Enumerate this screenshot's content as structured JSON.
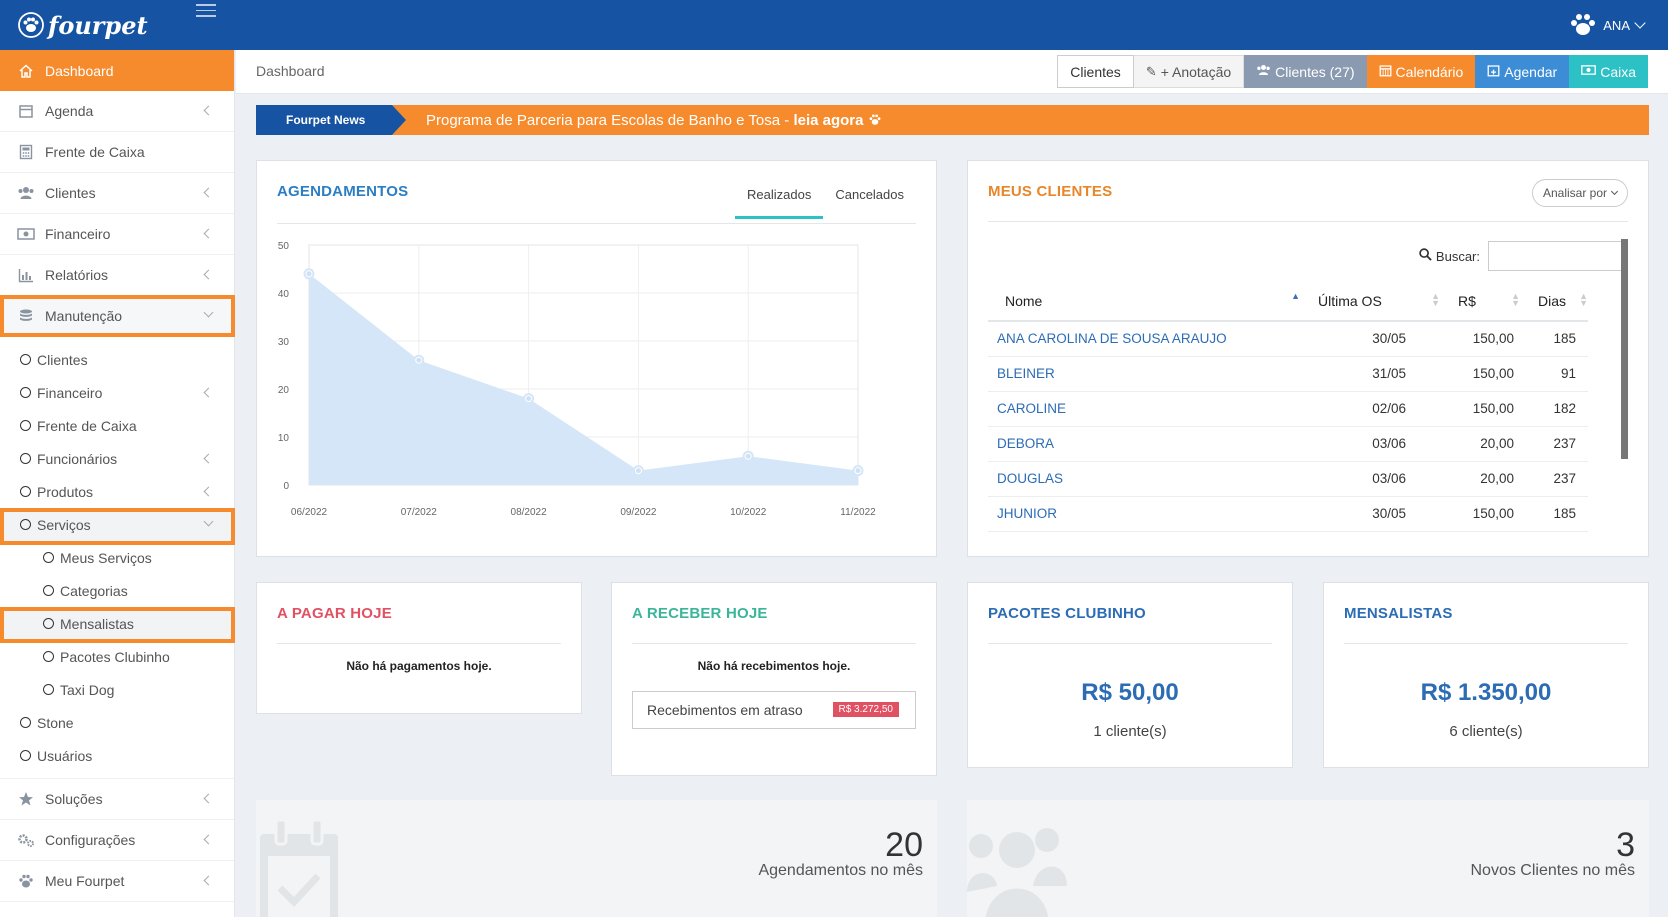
{
  "app": {
    "logo": "fourpet",
    "user": "ANA"
  },
  "sidebar": {
    "items": [
      {
        "label": "Dashboard"
      },
      {
        "label": "Agenda"
      },
      {
        "label": "Frente de Caixa"
      },
      {
        "label": "Clientes"
      },
      {
        "label": "Financeiro"
      },
      {
        "label": "Relatórios"
      },
      {
        "label": "Manutenção"
      }
    ],
    "sub": [
      {
        "label": "Clientes"
      },
      {
        "label": "Financeiro"
      },
      {
        "label": "Frente de Caixa"
      },
      {
        "label": "Funcionários"
      },
      {
        "label": "Produtos"
      },
      {
        "label": "Serviços"
      },
      {
        "label": "Meus Serviços"
      },
      {
        "label": "Categorias"
      },
      {
        "label": "Mensalistas"
      },
      {
        "label": "Pacotes Clubinho"
      },
      {
        "label": "Taxi Dog"
      },
      {
        "label": "Stone"
      },
      {
        "label": "Usuários"
      }
    ],
    "bottom": [
      {
        "label": "Soluções"
      },
      {
        "label": "Configurações"
      },
      {
        "label": "Meu Fourpet"
      }
    ]
  },
  "header": {
    "breadcrumb": "Dashboard",
    "actions": {
      "clientes": "Clientes",
      "anotacao": "+ Anotação",
      "clientes_count": "Clientes (27)",
      "calendario": "Calendário",
      "agendar": "Agendar",
      "caixa": "Caixa"
    }
  },
  "news": {
    "tag": "Fourpet News",
    "text": "Programa de Parceria para Escolas de Banho e Tosa - ",
    "link": "leia agora"
  },
  "agendamentos": {
    "title": "AGENDAMENTOS",
    "tabs": [
      "Realizados",
      "Cancelados"
    ]
  },
  "chart_data": {
    "type": "area",
    "categories": [
      "06/2022",
      "07/2022",
      "08/2022",
      "09/2022",
      "10/2022",
      "11/2022"
    ],
    "values": [
      44,
      26,
      18,
      3,
      6,
      3
    ],
    "yticks": [
      0,
      10,
      20,
      30,
      40,
      50
    ],
    "ylim": [
      0,
      50
    ],
    "color": "#d5e6f8",
    "grid": true
  },
  "clientes": {
    "title": "MEUS CLIENTES",
    "analisar": "Analisar por",
    "search_label": "Buscar:",
    "columns": [
      "Nome",
      "Última OS",
      "R$",
      "Dias"
    ],
    "rows": [
      [
        "ANA CAROLINA DE SOUSA ARAUJO",
        "30/05",
        "150,00",
        "185"
      ],
      [
        "BLEINER",
        "31/05",
        "150,00",
        "91"
      ],
      [
        "CAROLINE",
        "02/06",
        "150,00",
        "182"
      ],
      [
        "DEBORA",
        "03/06",
        "20,00",
        "237"
      ],
      [
        "DOUGLAS",
        "03/06",
        "20,00",
        "237"
      ],
      [
        "JHUNIOR",
        "30/05",
        "150,00",
        "185"
      ]
    ]
  },
  "pagar": {
    "title": "A PAGAR HOJE",
    "msg": "Não há pagamentos hoje."
  },
  "receber": {
    "title": "A RECEBER HOJE",
    "msg": "Não há recebimentos hoje.",
    "overdue": "Recebimentos em atraso",
    "badge": "R$ 3.272,50"
  },
  "pacotes": {
    "title": "PACOTES CLUBINHO",
    "value": "R$ 50,00",
    "sub": "1 cliente(s)"
  },
  "mensalistas": {
    "title": "MENSALISTAS",
    "value": "R$ 1.350,00",
    "sub": "6 cliente(s)"
  },
  "stats": {
    "agend": {
      "num": "20",
      "label": "Agendamentos no mês"
    },
    "novos": {
      "num": "3",
      "label": "Novos Clientes no mês"
    }
  },
  "colors": {
    "primary": "#1654a3",
    "accent": "#f68b2d",
    "teal": "#2cc1c5",
    "red": "#e05263",
    "green": "#3bb59a"
  }
}
